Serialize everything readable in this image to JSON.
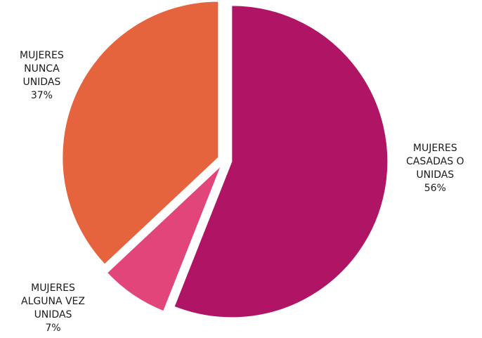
{
  "chart_data": {
    "type": "pie",
    "title": "",
    "slices": [
      {
        "label_lines": [
          "MUJERES",
          "CASADAS O",
          "UNIDAS"
        ],
        "percent_label": "56%",
        "value": 56,
        "color": "#b01565"
      },
      {
        "label_lines": [
          "MUJERES",
          "ALGUNA VEZ",
          "UNIDAS"
        ],
        "percent_label": "7%",
        "value": 7,
        "color": "#e2457a"
      },
      {
        "label_lines": [
          "MUJERES",
          "NUNCA",
          "UNIDAS"
        ],
        "percent_label": "37%",
        "value": 37,
        "color": "#e5633d"
      }
    ],
    "start_angle_deg": 0,
    "direction": "clockwise",
    "exploded": true,
    "legend": "none"
  }
}
